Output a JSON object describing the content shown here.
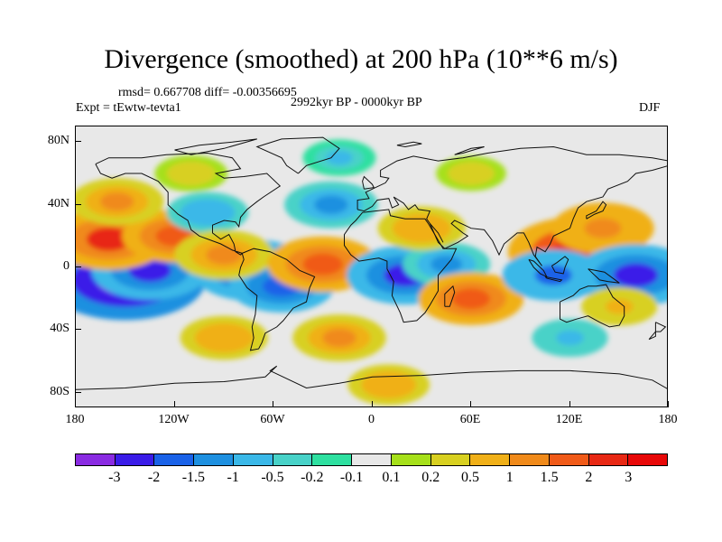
{
  "title": "Divergence (smoothed) at 200 hPa (10**6 m/s)",
  "stats": "rmsd= 0.667708 diff= -0.00356695",
  "experiment": "Expt = tEwtw-tevta1",
  "period": "2992kyr BP - 0000kyr BP",
  "season": "DJF",
  "y_ticks": [
    "80N",
    "40N",
    "0",
    "40S",
    "80S"
  ],
  "x_ticks": [
    "180",
    "120W",
    "60W",
    "0",
    "60E",
    "120E",
    "180"
  ],
  "colorbar": {
    "labels": [
      "-3",
      "-2",
      "-1.5",
      "-1",
      "-0.5",
      "-0.2",
      "-0.1",
      "0.1",
      "0.2",
      "0.5",
      "1",
      "1.5",
      "2",
      "3"
    ],
    "colors": [
      "#8a2be2",
      "#3a1ce8",
      "#1a62e8",
      "#1e90e0",
      "#3ab8e8",
      "#48d2c8",
      "#2ee0a0",
      "#e8e8e8",
      "#a6e01a",
      "#d8d020",
      "#f0b018",
      "#f08a1a",
      "#f05a18",
      "#e82814",
      "#e80808"
    ]
  },
  "chart_data": {
    "type": "heatmap",
    "title": "Divergence (smoothed) at 200 hPa (10**6 m/s)",
    "projection": "cylindrical equidistant",
    "lon_range": [
      -180,
      180
    ],
    "lat_range": [
      -90,
      90
    ],
    "levels": [
      -3,
      -2,
      -1.5,
      -1,
      -0.5,
      -0.2,
      -0.1,
      0.1,
      0.2,
      0.5,
      1,
      1.5,
      2,
      3
    ],
    "features": [
      {
        "lon": -150,
        "lat": -8,
        "value": -3.5
      },
      {
        "lon": -135,
        "lat": -2,
        "value": -2.0
      },
      {
        "lon": -160,
        "lat": 18,
        "value": 2.2
      },
      {
        "lon": -120,
        "lat": 20,
        "value": 1.6
      },
      {
        "lon": -155,
        "lat": 42,
        "value": 1.2
      },
      {
        "lon": -100,
        "lat": 35,
        "value": -0.8
      },
      {
        "lon": -72,
        "lat": -2,
        "value": -2.2
      },
      {
        "lon": -55,
        "lat": -12,
        "value": -1.6
      },
      {
        "lon": -90,
        "lat": 8,
        "value": 1.4
      },
      {
        "lon": -30,
        "lat": 2,
        "value": 1.8
      },
      {
        "lon": -25,
        "lat": 40,
        "value": -1.2
      },
      {
        "lon": 20,
        "lat": -5,
        "value": -2.0
      },
      {
        "lon": 45,
        "lat": 2,
        "value": -1.0
      },
      {
        "lon": 60,
        "lat": -20,
        "value": 1.6
      },
      {
        "lon": 30,
        "lat": 25,
        "value": 1.0
      },
      {
        "lon": 125,
        "lat": 10,
        "value": 2.8
      },
      {
        "lon": 140,
        "lat": 25,
        "value": 1.5
      },
      {
        "lon": 110,
        "lat": -5,
        "value": -1.5
      },
      {
        "lon": 160,
        "lat": -5,
        "value": -2.2
      },
      {
        "lon": 150,
        "lat": -25,
        "value": 0.6
      },
      {
        "lon": -90,
        "lat": -45,
        "value": 1.0
      },
      {
        "lon": -20,
        "lat": -45,
        "value": 1.2
      },
      {
        "lon": 120,
        "lat": -45,
        "value": -0.6
      },
      {
        "lon": -110,
        "lat": 60,
        "value": 0.5
      },
      {
        "lon": 60,
        "lat": 60,
        "value": 0.4
      },
      {
        "lon": -20,
        "lat": 70,
        "value": -0.5
      },
      {
        "lon": 10,
        "lat": -75,
        "value": 0.8
      }
    ]
  }
}
